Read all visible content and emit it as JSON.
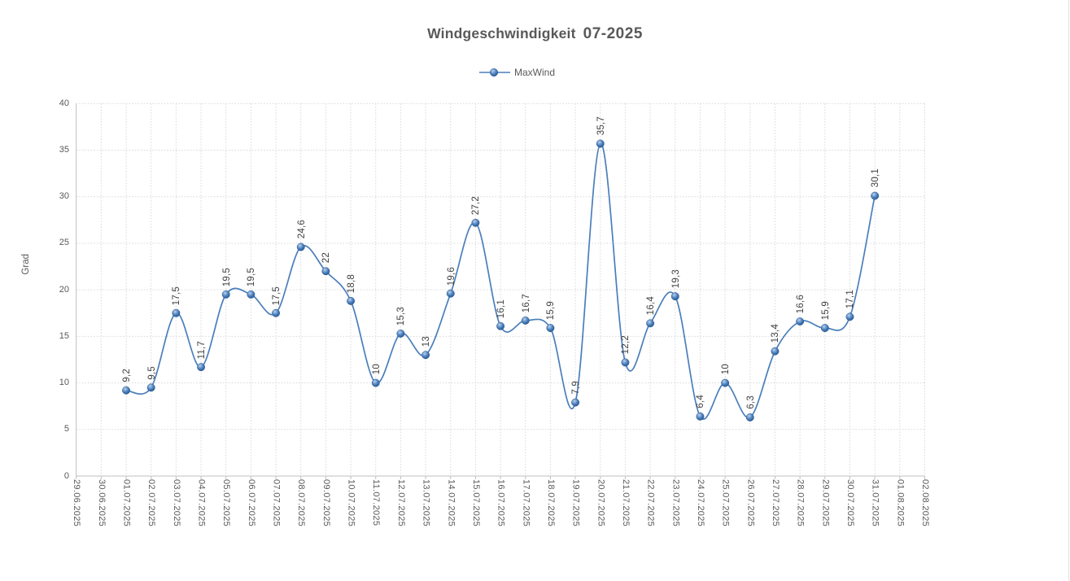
{
  "title": {
    "text_main": "Windgeschwindigkeit",
    "text_period": "07-2025"
  },
  "legend": [
    {
      "name": "MaxWind"
    }
  ],
  "y_axis": {
    "title": "Grad",
    "min": 0,
    "max": 40,
    "step": 5,
    "tick_labels": [
      "0",
      "5",
      "10",
      "15",
      "20",
      "25",
      "30",
      "35",
      "40"
    ]
  },
  "x_axis": {
    "categories": [
      "29.06.2025",
      "30.06.2025",
      "01.07.2025",
      "02.07.2025",
      "03.07.2025",
      "04.07.2025",
      "05.07.2025",
      "06.07.2025",
      "07.07.2025",
      "08.07.2025",
      "09.07.2025",
      "10.07.2025",
      "11.07.2025",
      "12.07.2025",
      "13.07.2025",
      "14.07.2025",
      "15.07.2025",
      "16.07.2025",
      "17.07.2025",
      "18.07.2025",
      "19.07.2025",
      "20.07.2025",
      "21.07.2025",
      "22.07.2025",
      "23.07.2025",
      "24.07.2025",
      "25.07.2025",
      "26.07.2025",
      "27.07.2025",
      "28.07.2025",
      "29.07.2025",
      "30.07.2025",
      "31.07.2025",
      "01.08.2025",
      "02.08.2025"
    ]
  },
  "chart_data": {
    "type": "line",
    "smooth": true,
    "title": "Windgeschwindigkeit 07-2025",
    "xlabel": "",
    "ylabel": "Grad",
    "ylim": [
      0,
      40
    ],
    "grid": true,
    "legend_position": "top",
    "series": [
      {
        "name": "MaxWind",
        "color": "#4a7ebb",
        "points": [
          {
            "date": "01.07.2025",
            "value": 9.2,
            "label": "9,2"
          },
          {
            "date": "02.07.2025",
            "value": 9.5,
            "label": "9,5"
          },
          {
            "date": "03.07.2025",
            "value": 17.5,
            "label": "17,5"
          },
          {
            "date": "04.07.2025",
            "value": 11.7,
            "label": "11,7"
          },
          {
            "date": "05.07.2025",
            "value": 19.5,
            "label": "19,5"
          },
          {
            "date": "06.07.2025",
            "value": 19.5,
            "label": "19,5"
          },
          {
            "date": "07.07.2025",
            "value": 17.5,
            "label": "17,5"
          },
          {
            "date": "08.07.2025",
            "value": 24.6,
            "label": "24,6"
          },
          {
            "date": "09.07.2025",
            "value": 22,
            "label": "22"
          },
          {
            "date": "10.07.2025",
            "value": 18.8,
            "label": "18,8"
          },
          {
            "date": "11.07.2025",
            "value": 10,
            "label": "10"
          },
          {
            "date": "12.07.2025",
            "value": 15.3,
            "label": "15,3"
          },
          {
            "date": "13.07.2025",
            "value": 13,
            "label": "13"
          },
          {
            "date": "14.07.2025",
            "value": 19.6,
            "label": "19,6"
          },
          {
            "date": "15.07.2025",
            "value": 27.2,
            "label": "27,2"
          },
          {
            "date": "16.07.2025",
            "value": 16.1,
            "label": "16,1"
          },
          {
            "date": "17.07.2025",
            "value": 16.7,
            "label": "16,7"
          },
          {
            "date": "18.07.2025",
            "value": 15.9,
            "label": "15,9"
          },
          {
            "date": "19.07.2025",
            "value": 7.9,
            "label": "7,9"
          },
          {
            "date": "20.07.2025",
            "value": 35.7,
            "label": "35,7"
          },
          {
            "date": "21.07.2025",
            "value": 12.2,
            "label": "12,2"
          },
          {
            "date": "22.07.2025",
            "value": 16.4,
            "label": "16,4"
          },
          {
            "date": "23.07.2025",
            "value": 19.3,
            "label": "19,3"
          },
          {
            "date": "24.07.2025",
            "value": 6.4,
            "label": "6,4"
          },
          {
            "date": "25.07.2025",
            "value": 10,
            "label": "10"
          },
          {
            "date": "26.07.2025",
            "value": 6.3,
            "label": "6,3"
          },
          {
            "date": "27.07.2025",
            "value": 13.4,
            "label": "13,4"
          },
          {
            "date": "28.07.2025",
            "value": 16.6,
            "label": "16,6"
          },
          {
            "date": "29.07.2025",
            "value": 15.9,
            "label": "15,9"
          },
          {
            "date": "30.07.2025",
            "value": 17.1,
            "label": "17,1"
          },
          {
            "date": "31.07.2025",
            "value": 30.1,
            "label": "30,1"
          }
        ]
      }
    ]
  },
  "colors": {
    "series": "#4a7ebb",
    "marker_light": "#b9d2ee",
    "marker_mid": "#4a7ebb",
    "marker_dark": "#24568f",
    "marker_stroke": "#2a5890",
    "gridline": "#d9d9d9",
    "axis_line": "#bfbfbf",
    "text_gray": "#595959",
    "data_label": "#404040"
  }
}
